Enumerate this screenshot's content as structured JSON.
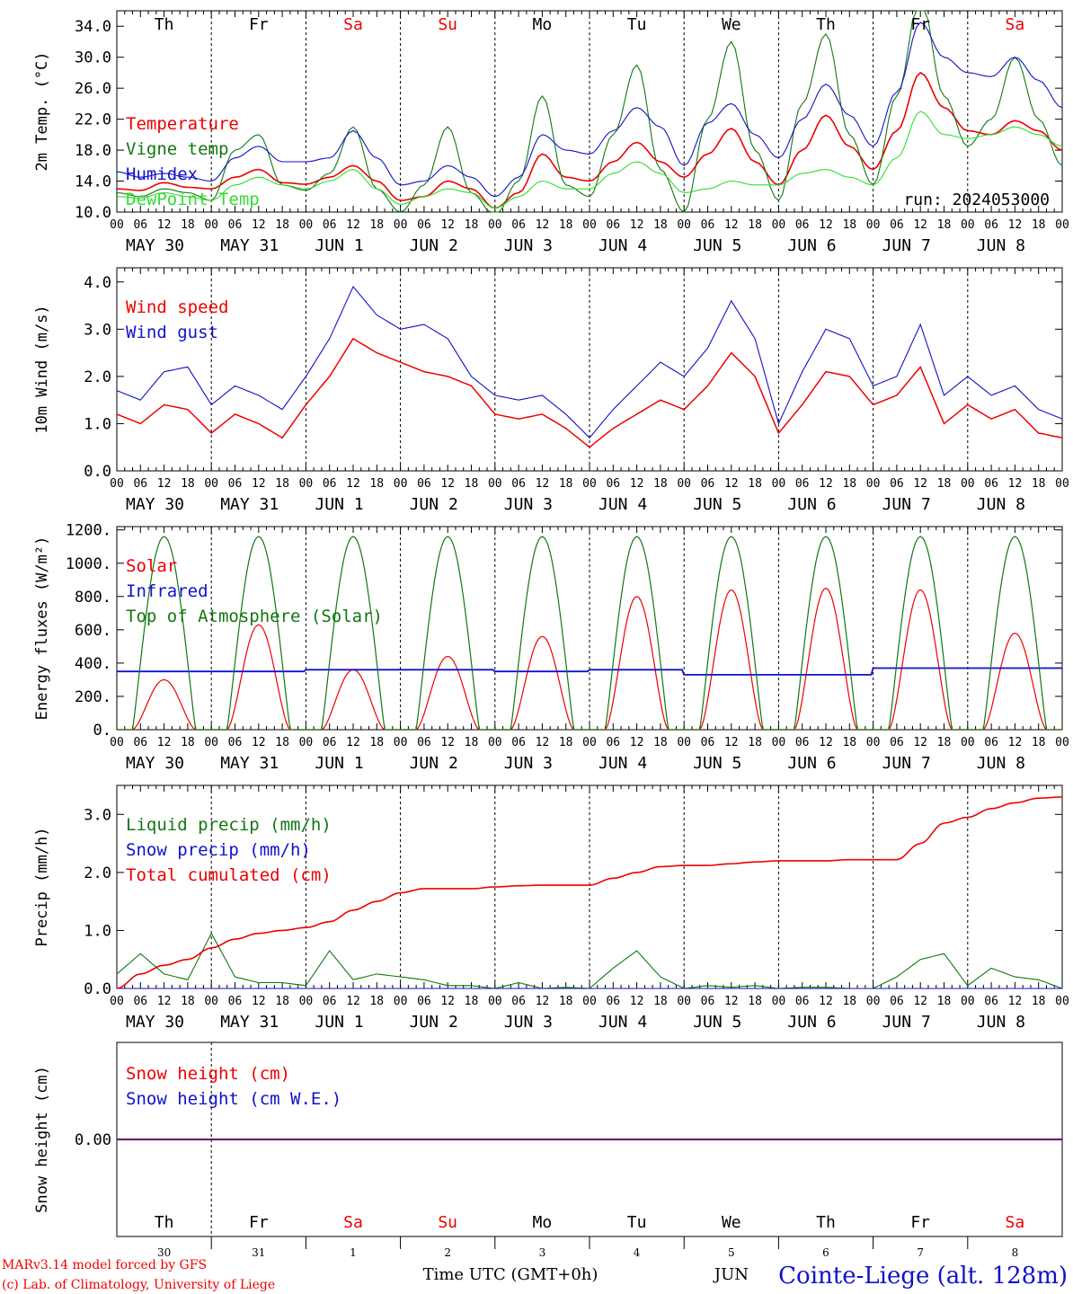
{
  "colors": {
    "red": "#ee0000",
    "green": "#117711",
    "blue": "#1111cc",
    "lightgreen": "#33dd33",
    "purple": "#660066",
    "black": "#000000"
  },
  "day_labels": [
    {
      "text": "Th",
      "color": "#000000"
    },
    {
      "text": "Fr",
      "color": "#000000"
    },
    {
      "text": "Sa",
      "color": "#ee0000"
    },
    {
      "text": "Su",
      "color": "#ee0000"
    },
    {
      "text": "Mo",
      "color": "#000000"
    },
    {
      "text": "Tu",
      "color": "#000000"
    },
    {
      "text": "We",
      "color": "#000000"
    },
    {
      "text": "Th",
      "color": "#000000"
    },
    {
      "text": "Fr",
      "color": "#000000"
    },
    {
      "text": "Sa",
      "color": "#ee0000"
    }
  ],
  "date_labels": [
    "MAY 30",
    "MAY 31",
    "JUN  1",
    "JUN  2",
    "JUN  3",
    "JUN  4",
    "JUN  5",
    "JUN  6",
    "JUN  7",
    "JUN  8"
  ],
  "hour_labels": [
    "00",
    "06",
    "12",
    "18"
  ],
  "bottom_axis": {
    "day_numbers": [
      "30",
      "31",
      "1",
      "2",
      "3",
      "4",
      "5",
      "6",
      "7",
      "8"
    ],
    "xlabel": "Time UTC (GMT+0h)",
    "month": "JUN"
  },
  "footer": {
    "credit_1": "MARv3.14 model forced by GFS",
    "credit_2": "(c) Lab. of Climatology, University of Liege",
    "station": "Cointe-Liege (alt. 128m)"
  },
  "chart_data": [
    {
      "type": "line",
      "ylabel": "2m Temp. (°C)",
      "ylim": [
        10,
        36
      ],
      "yticks": [
        "10.0",
        "14.0",
        "18.0",
        "22.0",
        "26.0",
        "30.0",
        "34.0"
      ],
      "annotation": "run: 2024053000",
      "x_hours": [
        0,
        6,
        12,
        18,
        24,
        30,
        36,
        42,
        48,
        54,
        60,
        66,
        72,
        78,
        84,
        90,
        96,
        102,
        108,
        114,
        120,
        126,
        132,
        138,
        144,
        150,
        156,
        162,
        168,
        174,
        180,
        186,
        192,
        198,
        204,
        210,
        216,
        222,
        228,
        234,
        240
      ],
      "series": [
        {
          "name": "Temperature",
          "color": "#ee0000",
          "values": [
            13.0,
            12.8,
            13.8,
            13.2,
            13.0,
            14.5,
            15.5,
            13.8,
            13.6,
            14.5,
            16.0,
            14.0,
            11.5,
            12.0,
            14.0,
            13.0,
            10.5,
            12.5,
            17.5,
            14.5,
            14.0,
            16.5,
            19.0,
            16.5,
            14.5,
            17.5,
            20.8,
            16.5,
            13.5,
            18.0,
            22.5,
            18.5,
            15.5,
            20.5,
            28.0,
            23.5,
            20.5,
            20.0,
            21.8,
            20.5,
            18.0
          ]
        },
        {
          "name": "Vigne temp",
          "color": "#117711",
          "values": [
            12.5,
            12.0,
            13.0,
            12.5,
            11.5,
            18.0,
            20.0,
            13.5,
            12.8,
            15.0,
            21.0,
            13.0,
            10.0,
            13.5,
            21.0,
            12.5,
            9.5,
            14.0,
            25.0,
            13.5,
            12.0,
            20.0,
            29.0,
            15.5,
            10.0,
            22.0,
            32.0,
            18.0,
            11.5,
            24.0,
            33.0,
            20.0,
            13.5,
            25.0,
            38.0,
            25.0,
            18.5,
            22.0,
            30.0,
            22.0,
            16.0
          ]
        },
        {
          "name": "Humidex",
          "color": "#1111cc",
          "values": [
            15.2,
            14.5,
            15.0,
            14.5,
            14.0,
            17.0,
            18.5,
            16.5,
            16.5,
            17.0,
            20.5,
            17.0,
            13.5,
            14.0,
            16.0,
            14.5,
            12.0,
            14.5,
            20.0,
            18.0,
            17.5,
            20.5,
            23.5,
            21.0,
            16.0,
            21.5,
            24.0,
            20.0,
            17.0,
            22.0,
            26.5,
            22.5,
            18.5,
            25.5,
            34.5,
            30.0,
            28.0,
            27.5,
            30.0,
            27.0,
            23.5
          ]
        },
        {
          "name": "DewPoint Temp",
          "color": "#33dd33",
          "values": [
            12.0,
            11.8,
            12.5,
            12.0,
            11.5,
            13.5,
            14.5,
            13.5,
            13.0,
            14.0,
            15.5,
            13.0,
            11.0,
            12.0,
            13.0,
            12.5,
            10.5,
            12.0,
            14.0,
            13.0,
            13.0,
            15.0,
            16.5,
            15.0,
            12.5,
            13.0,
            14.0,
            13.5,
            13.5,
            15.0,
            15.5,
            14.5,
            13.5,
            17.0,
            23.0,
            20.0,
            19.5,
            20.0,
            21.0,
            20.0,
            18.5
          ]
        }
      ]
    },
    {
      "type": "line",
      "ylabel": "10m Wind (m/s)",
      "ylim": [
        0,
        4.3
      ],
      "yticks": [
        "0.0",
        "1.0",
        "2.0",
        "3.0",
        "4.0"
      ],
      "x_hours": [
        0,
        6,
        12,
        18,
        24,
        30,
        36,
        42,
        48,
        54,
        60,
        66,
        72,
        78,
        84,
        90,
        96,
        102,
        108,
        114,
        120,
        126,
        132,
        138,
        144,
        150,
        156,
        162,
        168,
        174,
        180,
        186,
        192,
        198,
        204,
        210,
        216,
        222,
        228,
        234,
        240
      ],
      "series": [
        {
          "name": "Wind speed",
          "color": "#ee0000",
          "values": [
            1.2,
            1.0,
            1.4,
            1.3,
            0.8,
            1.2,
            1.0,
            0.7,
            1.4,
            2.0,
            2.8,
            2.5,
            2.3,
            2.1,
            2.0,
            1.8,
            1.2,
            1.1,
            1.2,
            0.9,
            0.5,
            0.9,
            1.2,
            1.5,
            1.3,
            1.8,
            2.5,
            2.0,
            0.8,
            1.4,
            2.1,
            2.0,
            1.4,
            1.6,
            2.2,
            1.0,
            1.4,
            1.1,
            1.3,
            0.8,
            0.7
          ]
        },
        {
          "name": "Wind gust",
          "color": "#1111cc",
          "values": [
            1.7,
            1.5,
            2.1,
            2.2,
            1.4,
            1.8,
            1.6,
            1.3,
            2.0,
            2.8,
            3.9,
            3.3,
            3.0,
            3.1,
            2.8,
            2.0,
            1.6,
            1.5,
            1.6,
            1.2,
            0.7,
            1.3,
            1.8,
            2.3,
            2.0,
            2.6,
            3.6,
            2.8,
            1.0,
            2.1,
            3.0,
            2.8,
            1.8,
            2.0,
            3.1,
            1.6,
            2.0,
            1.6,
            1.8,
            1.3,
            1.1
          ]
        }
      ]
    },
    {
      "type": "line",
      "ylabel": "Energy fluxes (W/m²)",
      "ylim": [
        0,
        1220
      ],
      "yticks": [
        "0.",
        "200.",
        "400.",
        "600.",
        "800.",
        "1000.",
        "1200."
      ],
      "days": 10,
      "series": [
        {
          "name": "Solar",
          "color": "#ee0000",
          "daily_peak": [
            300,
            630,
            360,
            440,
            560,
            800,
            840,
            850,
            840,
            580
          ]
        },
        {
          "name": "Infrared",
          "color": "#1111cc",
          "daily_level": [
            350,
            350,
            360,
            360,
            350,
            360,
            330,
            330,
            370,
            370
          ]
        },
        {
          "name": "Top of Atmosphere (Solar)",
          "color": "#117711",
          "daily_peak": [
            1160,
            1160,
            1160,
            1160,
            1160,
            1160,
            1160,
            1160,
            1160,
            1160
          ]
        }
      ]
    },
    {
      "type": "line",
      "ylabel": "Precip (mm/h)",
      "ylim": [
        0,
        3.5
      ],
      "yticks": [
        "0.0",
        "1.0",
        "2.0",
        "3.0"
      ],
      "x_hours": [
        0,
        6,
        12,
        18,
        24,
        30,
        36,
        42,
        48,
        54,
        60,
        66,
        72,
        78,
        84,
        90,
        96,
        102,
        108,
        114,
        120,
        126,
        132,
        138,
        144,
        150,
        156,
        162,
        168,
        174,
        180,
        186,
        192,
        198,
        204,
        210,
        216,
        222,
        228,
        234,
        240
      ],
      "series": [
        {
          "name": "Liquid precip (mm/h)",
          "color": "#117711",
          "values": [
            0.25,
            0.6,
            0.25,
            0.15,
            0.95,
            0.2,
            0.1,
            0.1,
            0.05,
            0.65,
            0.15,
            0.25,
            0.2,
            0.15,
            0.05,
            0.05,
            0.0,
            0.1,
            0.0,
            0.02,
            0.0,
            0.35,
            0.65,
            0.2,
            0.0,
            0.05,
            0.02,
            0.05,
            0.0,
            0.02,
            0.02,
            0.0,
            0.0,
            0.2,
            0.5,
            0.6,
            0.05,
            0.35,
            0.2,
            0.15,
            0.0
          ]
        },
        {
          "name": "Snow precip (mm/h)",
          "color": "#1111cc",
          "values": [
            0,
            0,
            0,
            0,
            0,
            0,
            0,
            0,
            0,
            0,
            0,
            0,
            0,
            0,
            0,
            0,
            0,
            0,
            0,
            0,
            0,
            0,
            0,
            0,
            0,
            0,
            0,
            0,
            0,
            0,
            0,
            0,
            0,
            0,
            0,
            0,
            0,
            0,
            0,
            0,
            0
          ]
        },
        {
          "name": "Total cumulated (cm)",
          "color": "#ee0000",
          "values": [
            0.0,
            0.25,
            0.4,
            0.5,
            0.7,
            0.85,
            0.95,
            1.0,
            1.05,
            1.15,
            1.35,
            1.5,
            1.65,
            1.72,
            1.72,
            1.72,
            1.75,
            1.77,
            1.78,
            1.78,
            1.78,
            1.9,
            2.0,
            2.1,
            2.12,
            2.12,
            2.15,
            2.18,
            2.2,
            2.2,
            2.2,
            2.22,
            2.22,
            2.22,
            2.5,
            2.85,
            2.95,
            3.1,
            3.2,
            3.28,
            3.3
          ]
        }
      ]
    },
    {
      "type": "line",
      "ylabel": "Snow height (cm)",
      "ylim": [
        -1,
        1
      ],
      "yticks": [
        "0.00"
      ],
      "series": [
        {
          "name": "Snow height (cm)",
          "color": "#ee0000",
          "values": [
            0,
            0
          ]
        },
        {
          "name": "Snow height (cm W.E.)",
          "color": "#1111cc",
          "values": [
            0,
            0
          ]
        }
      ]
    }
  ]
}
